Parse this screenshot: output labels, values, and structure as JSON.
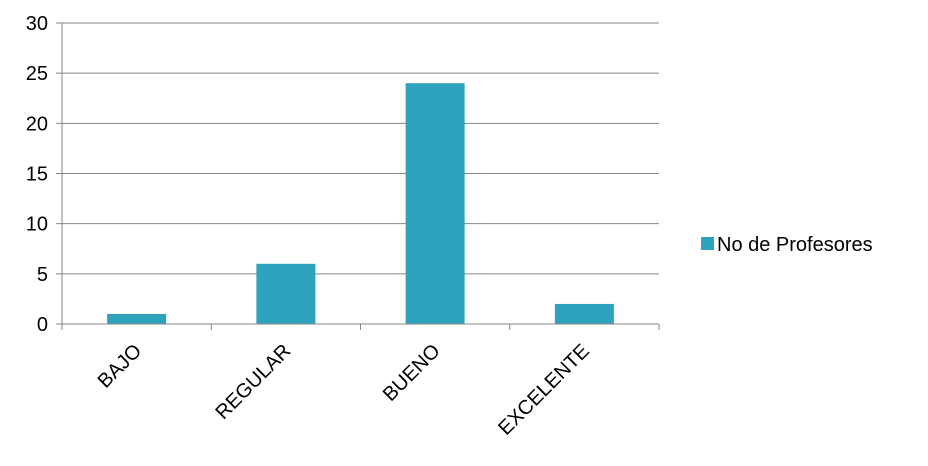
{
  "chart_data": {
    "type": "bar",
    "categories": [
      "BAJO",
      "REGULAR",
      "BUENO",
      "EXCELENTE"
    ],
    "series": [
      {
        "name": "No de Profesores",
        "values": [
          1,
          6,
          24,
          2
        ],
        "color": "#2EA3BE"
      }
    ],
    "title": "",
    "xlabel": "",
    "ylabel": "",
    "ylim": [
      0,
      30
    ],
    "yticks": [
      0,
      5,
      10,
      15,
      20,
      25,
      30
    ],
    "grid": true,
    "legend_position": "right"
  }
}
